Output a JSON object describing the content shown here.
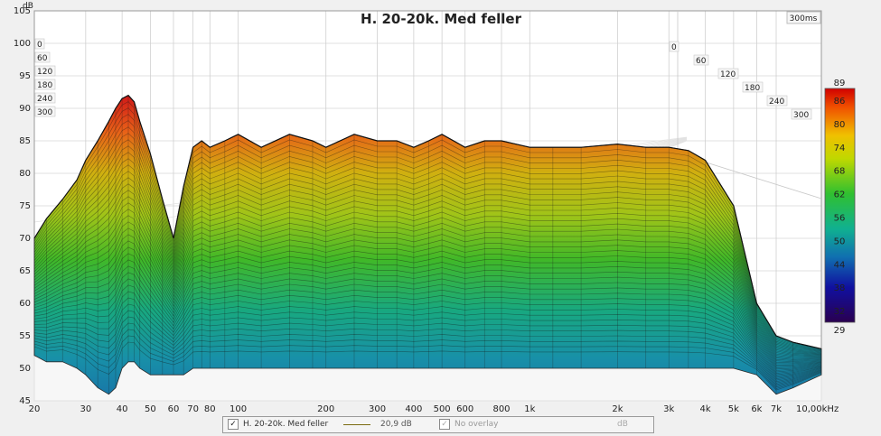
{
  "chart_data": {
    "type": "area",
    "title": "H. 20-20k. Med feller",
    "y_unit_label": "dB",
    "time_range_label": "300ms",
    "ylim": [
      45,
      105
    ],
    "y_ticks": [
      "45",
      "50",
      "55",
      "60",
      "65",
      "70",
      "75",
      "80",
      "85",
      "90",
      "95",
      "100",
      "105"
    ],
    "x_scale": "log",
    "xlim": [
      20,
      10000
    ],
    "x_ticks": [
      {
        "value": 20,
        "label": "20"
      },
      {
        "value": 30,
        "label": "30"
      },
      {
        "value": 40,
        "label": "40"
      },
      {
        "value": 50,
        "label": "50"
      },
      {
        "value": 60,
        "label": "60"
      },
      {
        "value": 70,
        "label": "70"
      },
      {
        "value": 80,
        "label": "80"
      },
      {
        "value": 100,
        "label": "100"
      },
      {
        "value": 200,
        "label": "200"
      },
      {
        "value": 300,
        "label": "300"
      },
      {
        "value": 400,
        "label": "400"
      },
      {
        "value": 500,
        "label": "500"
      },
      {
        "value": 600,
        "label": "600"
      },
      {
        "value": 800,
        "label": "800"
      },
      {
        "value": 1000,
        "label": "1k"
      },
      {
        "value": 2000,
        "label": "2k"
      },
      {
        "value": 3000,
        "label": "3k"
      },
      {
        "value": 4000,
        "label": "4k"
      },
      {
        "value": 5000,
        "label": "5k"
      },
      {
        "value": 6000,
        "label": "6k"
      },
      {
        "value": 7000,
        "label": "7k"
      },
      {
        "value": 10000,
        "label": "10,00kHz"
      }
    ],
    "time_ticks_left": [
      "0",
      "60",
      "120",
      "180",
      "240",
      "300"
    ],
    "time_ticks_right": [
      "0",
      "60",
      "120",
      "180",
      "240",
      "300"
    ],
    "colorbar": {
      "range": [
        29,
        89
      ],
      "labels": [
        "89",
        "86",
        "80",
        "74",
        "68",
        "62",
        "56",
        "50",
        "44",
        "38",
        "32",
        "29"
      ]
    },
    "series": [
      {
        "front_slice_x": [
          20,
          22,
          25,
          28,
          30,
          33,
          36,
          38,
          40,
          42,
          44,
          46,
          50,
          55,
          60,
          65,
          70,
          75,
          80,
          90,
          100,
          120,
          150,
          180,
          200,
          250,
          300,
          350,
          400,
          450,
          500,
          600,
          700,
          800,
          1000,
          1200,
          1500,
          2000,
          2500,
          3000,
          3500,
          4000,
          5000,
          6000,
          7000,
          8000,
          10000
        ],
        "front_slice_y": [
          70,
          73,
          76,
          79,
          82,
          85,
          88,
          90,
          91.5,
          92,
          91,
          88,
          83,
          76,
          70,
          78,
          84,
          85,
          84,
          85,
          86,
          84,
          86,
          85,
          84,
          86,
          85,
          85,
          84,
          85,
          86,
          84,
          85,
          85,
          84,
          84,
          84,
          84.5,
          84,
          84,
          83.5,
          82,
          75,
          60,
          55,
          54,
          53
        ],
        "floor_y": [
          52,
          51,
          51,
          50,
          49,
          47,
          46,
          47,
          50,
          51,
          51,
          50,
          49,
          49,
          49,
          49,
          50,
          50,
          50,
          50,
          50,
          50,
          50,
          50,
          50,
          50,
          50,
          50,
          50,
          50,
          50,
          50,
          50,
          50,
          50,
          50,
          50,
          50,
          50,
          50,
          50,
          50,
          50,
          49,
          46,
          47,
          49
        ]
      }
    ]
  },
  "legend": {
    "item1_label": "H. 20-20k. Med feller",
    "item1_value": "20,9 dB",
    "item2_label": "No overlay",
    "item2_unit": "dB",
    "line_color": "#7a6a10"
  }
}
